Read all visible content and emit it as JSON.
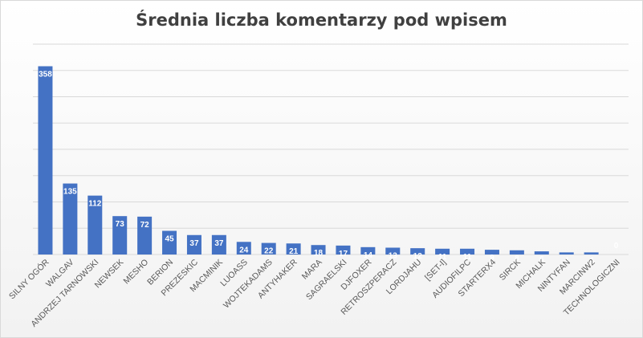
{
  "chart_data": {
    "type": "bar",
    "title": "Średnia liczba komentarzy pod wpisem",
    "xlabel": "",
    "ylabel": "",
    "categories": [
      "SILNY OGÓR",
      "WALGAV",
      "ANDRZEJ TARNOWSKI",
      "NEWSEK",
      "MESHO",
      "BERION",
      "PREZESKIC",
      "MACMINIK",
      "LUOASS",
      "WOJTEKADAMS",
      "ANTYHAKER",
      "MARA",
      "SAGRAELSKI",
      "DJFOXER",
      "RETROSZPERACZ",
      "LORDJAHU",
      "[SET-I]",
      "AUDIOFILPC",
      "STARTERX4",
      "SIRCK",
      "MICHALK",
      "NINTYFAN",
      "MARCINW2",
      "TECHNOLOGICZNI"
    ],
    "values": [
      358,
      135,
      112,
      73,
      72,
      45,
      37,
      37,
      24,
      22,
      21,
      18,
      17,
      14,
      13,
      12,
      11,
      11,
      9,
      8,
      6,
      4,
      4,
      0
    ],
    "ylim": [
      0,
      400
    ],
    "grid": true,
    "legend": "none",
    "bar_color": "#4472c4",
    "grid_color": "#d9d9d9"
  }
}
